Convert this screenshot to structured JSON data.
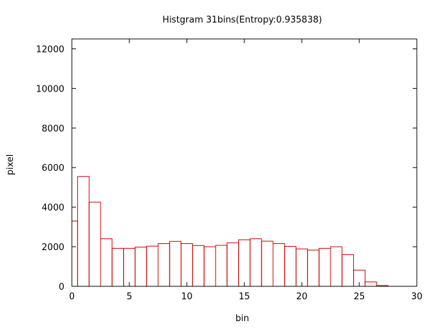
{
  "chart_data": {
    "type": "bar",
    "title": "Histgram 31bins(Entropy:0.935838)",
    "xlabel": "bin",
    "ylabel": "pixel",
    "xlim": [
      0,
      30
    ],
    "ylim": [
      0,
      12500
    ],
    "xticks": [
      0,
      5,
      10,
      15,
      20,
      25,
      30
    ],
    "yticks": [
      0,
      2000,
      4000,
      6000,
      8000,
      10000,
      12000
    ],
    "bar_color": "#cc0000",
    "bins": [
      0,
      1,
      2,
      3,
      4,
      5,
      6,
      7,
      8,
      9,
      10,
      11,
      12,
      13,
      14,
      15,
      16,
      17,
      18,
      19,
      20,
      21,
      22,
      23,
      24,
      25,
      26,
      27,
      28,
      29,
      30
    ],
    "values": [
      3300,
      5550,
      4250,
      2400,
      1920,
      1920,
      1980,
      2030,
      2160,
      2270,
      2160,
      2060,
      2000,
      2070,
      2200,
      2350,
      2400,
      2280,
      2160,
      2020,
      1890,
      1830,
      1920,
      2000,
      1600,
      820,
      220,
      40,
      0,
      0,
      0
    ]
  }
}
